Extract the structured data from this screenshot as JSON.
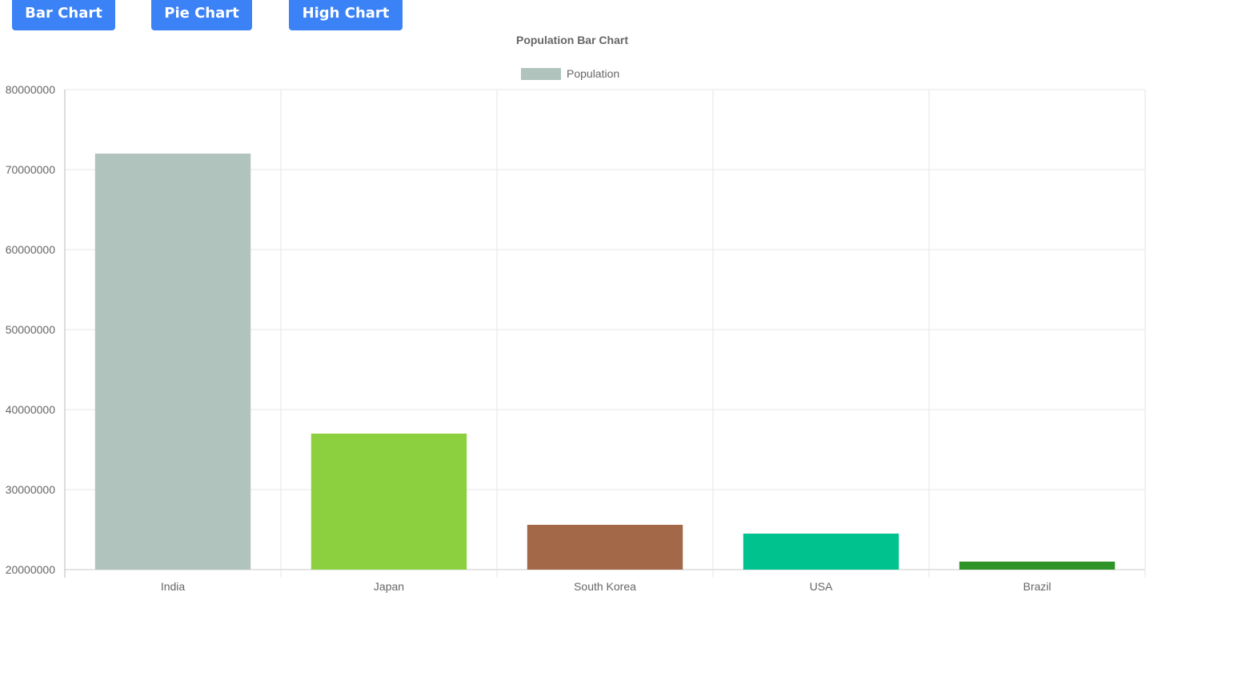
{
  "toolbar": {
    "buttons": [
      "Bar Chart",
      "Pie Chart",
      "High Chart"
    ],
    "button_color": "#3b82f6"
  },
  "chart_data": {
    "type": "bar",
    "title": "Population Bar Chart",
    "legend": {
      "label": "Population",
      "color": "#b0c4bd",
      "placement": "top-center"
    },
    "categories": [
      "India",
      "Japan",
      "South Korea",
      "USA",
      "Brazil"
    ],
    "values": [
      72000000,
      37000000,
      25600000,
      24500000,
      21000000
    ],
    "colors": [
      "#b0c4bd",
      "#8ccf3f",
      "#a36848",
      "#00c28e",
      "#2e9427"
    ],
    "ylim": [
      20000000,
      80000000
    ],
    "yticks": [
      "80000000",
      "70000000",
      "60000000",
      "50000000",
      "40000000",
      "30000000",
      "20000000"
    ],
    "grid": true,
    "xlabel": "",
    "ylabel": ""
  }
}
